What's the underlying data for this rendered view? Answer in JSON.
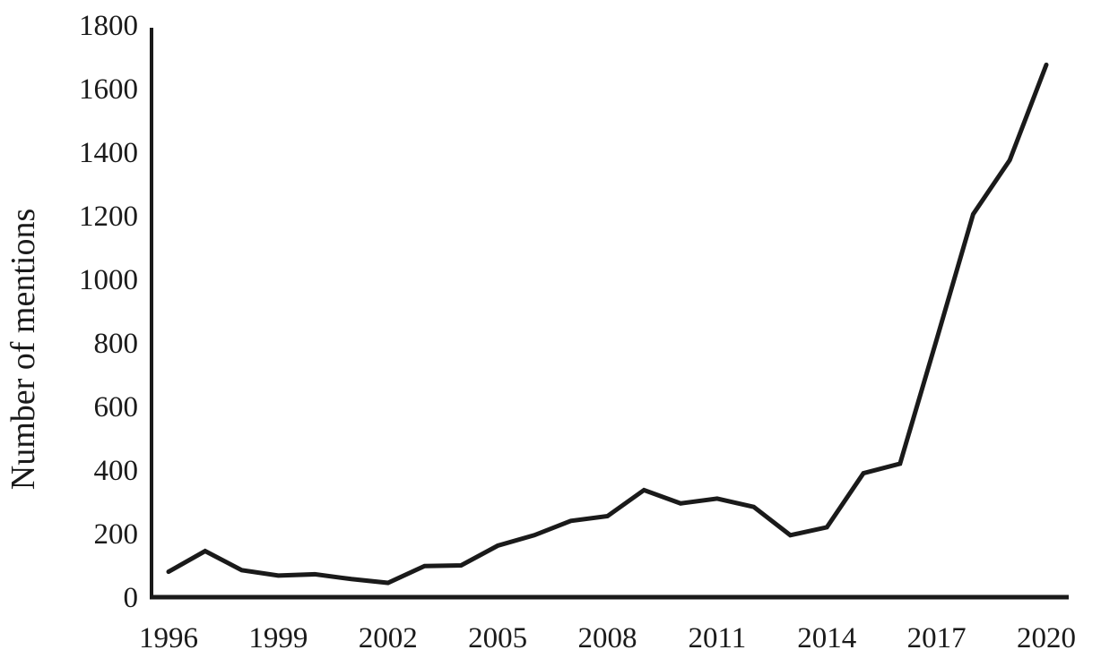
{
  "page": {
    "background_color": "#ffffff",
    "ink_color": "#1a1a1a"
  },
  "chart_data": {
    "type": "line",
    "title": "",
    "xlabel": "",
    "ylabel": "Number of mentions",
    "x": [
      1996,
      1997,
      1998,
      1999,
      2000,
      2001,
      2002,
      2003,
      2004,
      2005,
      2006,
      2007,
      2008,
      2009,
      2010,
      2011,
      2012,
      2013,
      2014,
      2015,
      2016,
      2017,
      2018,
      2019,
      2020
    ],
    "series": [
      {
        "name": "Number of mentions",
        "values": [
          80,
          145,
          85,
          68,
          72,
          57,
          45,
          98,
          100,
          162,
          195,
          240,
          255,
          337,
          295,
          310,
          284,
          195,
          220,
          390,
          420,
          810,
          1205,
          1375,
          1675
        ]
      }
    ],
    "ylim": [
      0,
      1800
    ],
    "ytick_step": 200,
    "yticks": [
      0,
      200,
      400,
      600,
      800,
      1000,
      1200,
      1400,
      1600,
      1800
    ],
    "xticks": [
      1996,
      1999,
      2002,
      2005,
      2008,
      2011,
      2014,
      2017,
      2020
    ],
    "grid": false,
    "legend": false,
    "line_color": "#1a1a1a",
    "axis_color": "#1a1a1a"
  }
}
